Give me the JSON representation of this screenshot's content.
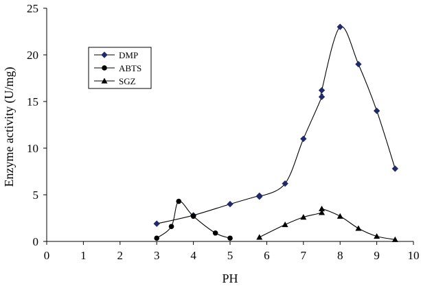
{
  "chart_data": {
    "type": "line",
    "xlabel": "PH",
    "ylabel": "Enzyme activity (U/mg)",
    "xlim": [
      0,
      10
    ],
    "ylim": [
      0,
      25
    ],
    "x_ticks": [
      0,
      1,
      2,
      3,
      4,
      5,
      6,
      7,
      8,
      9,
      10
    ],
    "y_ticks": [
      0,
      5,
      10,
      15,
      20,
      25
    ],
    "grid": false,
    "legend_position": "top-left",
    "series": [
      {
        "name": "DMP",
        "marker": "diamond",
        "color": "#1f2a6b",
        "points": [
          [
            3.0,
            1.9
          ],
          [
            4.0,
            2.8
          ],
          [
            5.0,
            4.0
          ],
          [
            5.8,
            4.9
          ],
          [
            5.8,
            4.8
          ],
          [
            6.5,
            6.2
          ],
          [
            7.0,
            11.0
          ],
          [
            7.5,
            15.5
          ],
          [
            7.5,
            16.2
          ],
          [
            8.0,
            23.0
          ],
          [
            8.5,
            19.0
          ],
          [
            9.0,
            14.0
          ],
          [
            9.5,
            7.8
          ]
        ]
      },
      {
        "name": "ABTS",
        "marker": "circle",
        "color": "#000000",
        "points": [
          [
            3.0,
            0.35
          ],
          [
            3.4,
            1.6
          ],
          [
            3.6,
            4.3
          ],
          [
            4.0,
            2.7
          ],
          [
            4.6,
            0.9
          ],
          [
            5.0,
            0.35
          ]
        ]
      },
      {
        "name": "SGZ",
        "marker": "triangle",
        "color": "#000000",
        "points": [
          [
            5.8,
            0.45
          ],
          [
            6.5,
            1.8
          ],
          [
            7.0,
            2.6
          ],
          [
            7.5,
            3.1
          ],
          [
            7.5,
            3.5
          ],
          [
            8.0,
            2.7
          ],
          [
            8.5,
            1.4
          ],
          [
            9.0,
            0.55
          ],
          [
            9.5,
            0.2
          ]
        ]
      }
    ]
  }
}
